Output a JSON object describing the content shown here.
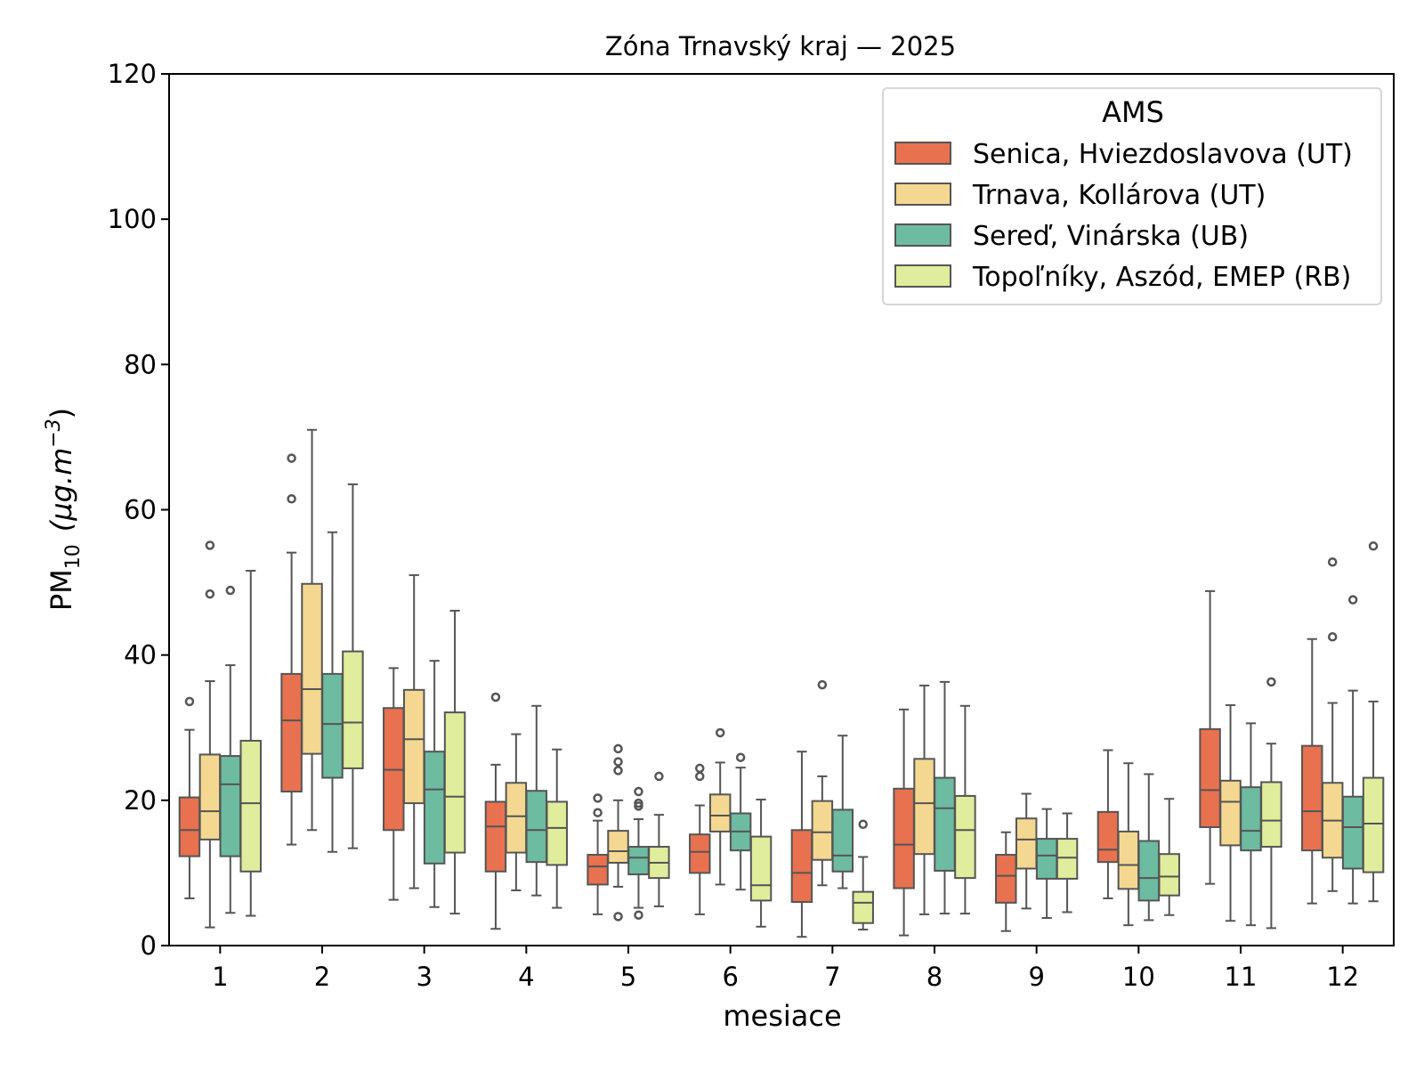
{
  "chart_data": {
    "type": "boxplot",
    "title": "Zóna Trnavský kraj —  2025",
    "xlabel": "mesiace",
    "ylabel": "PM",
    "ylabel_sub": "10",
    "ylabel_units": "(μg.m",
    "ylabel_sup": "−3",
    "ylabel_close": ")",
    "ylim": [
      0,
      120
    ],
    "yticks": [
      "0",
      "20",
      "40",
      "60",
      "80",
      "100",
      "120"
    ],
    "categories": [
      "1",
      "2",
      "3",
      "4",
      "5",
      "6",
      "7",
      "8",
      "9",
      "10",
      "11",
      "12"
    ],
    "legend": {
      "title": "AMS",
      "position": "top-right"
    },
    "series": [
      {
        "name": "Senica, Hviezdoslavova (UT)",
        "color": "#e8714f",
        "boxes": [
          {
            "whislo": 6.5,
            "q1": 12.3,
            "med": 15.9,
            "q3": 20.4,
            "whishi": 29.7,
            "fliers": [
              33.6
            ]
          },
          {
            "whislo": 13.9,
            "q1": 21.2,
            "med": 31.0,
            "q3": 37.4,
            "whishi": 54.1,
            "fliers": [
              61.5,
              67.1
            ]
          },
          {
            "whislo": 6.3,
            "q1": 15.9,
            "med": 24.2,
            "q3": 32.7,
            "whishi": 38.2,
            "fliers": []
          },
          {
            "whislo": 2.3,
            "q1": 10.2,
            "med": 16.4,
            "q3": 19.8,
            "whishi": 24.9,
            "fliers": [
              34.2
            ]
          },
          {
            "whislo": 4.3,
            "q1": 8.4,
            "med": 10.9,
            "q3": 12.5,
            "whishi": 17.2,
            "fliers": [
              18.3,
              20.3
            ]
          },
          {
            "whislo": 4.3,
            "q1": 10.0,
            "med": 12.9,
            "q3": 15.3,
            "whishi": 19.3,
            "fliers": [
              23.3,
              24.4
            ]
          },
          {
            "whislo": 1.2,
            "q1": 6.0,
            "med": 10.0,
            "q3": 15.9,
            "whishi": 26.7,
            "fliers": []
          },
          {
            "whislo": 1.4,
            "q1": 7.9,
            "med": 13.9,
            "q3": 21.6,
            "whishi": 32.5,
            "fliers": []
          },
          {
            "whislo": 2.0,
            "q1": 5.9,
            "med": 9.6,
            "q3": 12.5,
            "whishi": 15.6,
            "fliers": []
          },
          {
            "whislo": 6.5,
            "q1": 11.5,
            "med": 13.2,
            "q3": 18.4,
            "whishi": 26.9,
            "fliers": []
          },
          {
            "whislo": 8.5,
            "q1": 16.3,
            "med": 21.4,
            "q3": 29.8,
            "whishi": 48.8,
            "fliers": []
          },
          {
            "whislo": 5.8,
            "q1": 13.1,
            "med": 18.5,
            "q3": 27.5,
            "whishi": 42.2,
            "fliers": []
          }
        ]
      },
      {
        "name": "Trnava, Kollárova (UT)",
        "color": "#f4d891",
        "boxes": [
          {
            "whislo": 2.5,
            "q1": 14.6,
            "med": 18.5,
            "q3": 26.3,
            "whishi": 36.4,
            "fliers": [
              48.4,
              55.1
            ]
          },
          {
            "whislo": 15.9,
            "q1": 26.4,
            "med": 35.3,
            "q3": 49.8,
            "whishi": 71.0,
            "fliers": []
          },
          {
            "whislo": 7.9,
            "q1": 19.6,
            "med": 28.4,
            "q3": 35.2,
            "whishi": 51.0,
            "fliers": []
          },
          {
            "whislo": 7.6,
            "q1": 12.8,
            "med": 17.8,
            "q3": 22.4,
            "whishi": 29.1,
            "fliers": []
          },
          {
            "whislo": 8.1,
            "q1": 11.4,
            "med": 13.0,
            "q3": 15.8,
            "whishi": 20.0,
            "fliers": [
              4.0,
              24.1,
              25.3,
              27.1
            ]
          },
          {
            "whislo": 8.4,
            "q1": 15.7,
            "med": 17.9,
            "q3": 20.8,
            "whishi": 25.2,
            "fliers": [
              29.3
            ]
          },
          {
            "whislo": 8.3,
            "q1": 11.8,
            "med": 15.6,
            "q3": 19.9,
            "whishi": 23.3,
            "fliers": [
              35.9
            ]
          },
          {
            "whislo": 4.3,
            "q1": 12.6,
            "med": 19.6,
            "q3": 25.7,
            "whishi": 35.8,
            "fliers": []
          },
          {
            "whislo": 5.1,
            "q1": 10.6,
            "med": 14.6,
            "q3": 17.5,
            "whishi": 20.9,
            "fliers": []
          },
          {
            "whislo": 2.8,
            "q1": 7.8,
            "med": 11.1,
            "q3": 15.7,
            "whishi": 25.1,
            "fliers": []
          },
          {
            "whislo": 3.4,
            "q1": 13.8,
            "med": 19.8,
            "q3": 22.7,
            "whishi": 33.1,
            "fliers": []
          },
          {
            "whislo": 7.5,
            "q1": 12.1,
            "med": 17.2,
            "q3": 22.4,
            "whishi": 33.4,
            "fliers": [
              42.5,
              52.8
            ]
          }
        ]
      },
      {
        "name": "Sereď, Vinárska (UB)",
        "color": "#6dbba0",
        "boxes": [
          {
            "whislo": 4.5,
            "q1": 12.3,
            "med": 22.2,
            "q3": 26.1,
            "whishi": 38.6,
            "fliers": [
              48.9
            ]
          },
          {
            "whislo": 12.9,
            "q1": 23.1,
            "med": 30.5,
            "q3": 37.4,
            "whishi": 56.9,
            "fliers": []
          },
          {
            "whislo": 5.3,
            "q1": 11.3,
            "med": 21.5,
            "q3": 26.7,
            "whishi": 39.2,
            "fliers": []
          },
          {
            "whislo": 6.9,
            "q1": 11.5,
            "med": 15.9,
            "q3": 21.3,
            "whishi": 33.0,
            "fliers": []
          },
          {
            "whislo": 5.2,
            "q1": 9.8,
            "med": 12.1,
            "q3": 13.6,
            "whishi": 17.4,
            "fliers": [
              4.2,
              19.2,
              19.6,
              21.2
            ]
          },
          {
            "whislo": 7.7,
            "q1": 13.1,
            "med": 15.7,
            "q3": 18.2,
            "whishi": 24.5,
            "fliers": [
              25.9
            ]
          },
          {
            "whislo": 7.9,
            "q1": 10.2,
            "med": 12.4,
            "q3": 18.7,
            "whishi": 28.9,
            "fliers": []
          },
          {
            "whislo": 4.4,
            "q1": 10.3,
            "med": 18.9,
            "q3": 23.1,
            "whishi": 36.3,
            "fliers": []
          },
          {
            "whislo": 3.8,
            "q1": 9.2,
            "med": 12.4,
            "q3": 14.7,
            "whishi": 18.8,
            "fliers": []
          },
          {
            "whislo": 3.5,
            "q1": 6.2,
            "med": 9.3,
            "q3": 14.4,
            "whishi": 23.6,
            "fliers": []
          },
          {
            "whislo": 2.8,
            "q1": 13.1,
            "med": 15.8,
            "q3": 21.8,
            "whishi": 30.6,
            "fliers": []
          },
          {
            "whislo": 5.8,
            "q1": 10.6,
            "med": 16.3,
            "q3": 20.5,
            "whishi": 35.1,
            "fliers": [
              47.6
            ]
          }
        ]
      },
      {
        "name": "Topoľníky, Aszód, EMEP (RB)",
        "color": "#dfed9c",
        "boxes": [
          {
            "whislo": 4.1,
            "q1": 10.2,
            "med": 19.6,
            "q3": 28.2,
            "whishi": 51.6,
            "fliers": []
          },
          {
            "whislo": 13.4,
            "q1": 24.4,
            "med": 30.7,
            "q3": 40.5,
            "whishi": 63.5,
            "fliers": []
          },
          {
            "whislo": 4.4,
            "q1": 12.8,
            "med": 20.5,
            "q3": 32.1,
            "whishi": 46.1,
            "fliers": []
          },
          {
            "whislo": 5.2,
            "q1": 11.1,
            "med": 16.2,
            "q3": 19.8,
            "whishi": 27.0,
            "fliers": []
          },
          {
            "whislo": 5.4,
            "q1": 9.3,
            "med": 11.4,
            "q3": 13.6,
            "whishi": 18.0,
            "fliers": [
              23.3
            ]
          },
          {
            "whislo": 2.6,
            "q1": 6.2,
            "med": 8.3,
            "q3": 15.0,
            "whishi": 20.1,
            "fliers": []
          },
          {
            "whislo": 2.2,
            "q1": 3.1,
            "med": 5.9,
            "q3": 7.4,
            "whishi": 12.2,
            "fliers": [
              16.7
            ]
          },
          {
            "whislo": 4.4,
            "q1": 9.3,
            "med": 15.9,
            "q3": 20.6,
            "whishi": 33.0,
            "fliers": []
          },
          {
            "whislo": 4.6,
            "q1": 9.2,
            "med": 12.1,
            "q3": 14.7,
            "whishi": 18.2,
            "fliers": []
          },
          {
            "whislo": 4.2,
            "q1": 6.9,
            "med": 9.5,
            "q3": 12.6,
            "whishi": 20.2,
            "fliers": []
          },
          {
            "whislo": 2.4,
            "q1": 13.6,
            "med": 17.2,
            "q3": 22.5,
            "whishi": 27.8,
            "fliers": [
              36.3
            ]
          },
          {
            "whislo": 6.1,
            "q1": 10.1,
            "med": 16.8,
            "q3": 23.1,
            "whishi": 33.6,
            "fliers": [
              55.0
            ]
          }
        ]
      }
    ]
  }
}
